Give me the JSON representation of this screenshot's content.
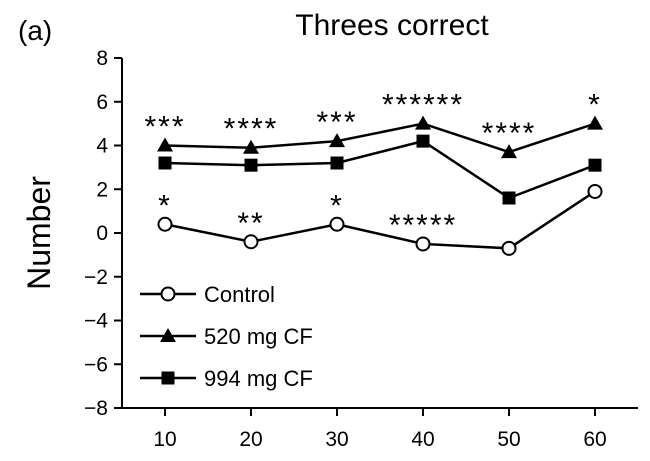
{
  "panel_label": "(a)",
  "chart_data": {
    "type": "line",
    "title": "Threes correct",
    "xlabel": "",
    "ylabel": "Number",
    "x": [
      10,
      20,
      30,
      40,
      50,
      60
    ],
    "xlim": [
      5,
      65
    ],
    "ylim": [
      -8,
      8
    ],
    "yticks": [
      8,
      6,
      4,
      2,
      0,
      -2,
      -4,
      -6,
      -8
    ],
    "ytick_labels": [
      "8",
      "6",
      "4",
      "2",
      "0",
      "−2",
      "−4",
      "−6",
      "−8"
    ],
    "xtick_labels": [
      "10",
      "20",
      "30",
      "40",
      "50",
      "60"
    ],
    "grid": false,
    "legend_position": "bottom-left",
    "series": [
      {
        "name": "Control",
        "marker": "open-circle",
        "color": "#000000",
        "values": [
          0.4,
          -0.4,
          0.4,
          -0.5,
          -0.7,
          1.9
        ]
      },
      {
        "name": "520 mg CF",
        "marker": "filled-triangle",
        "color": "#000000",
        "values": [
          4.0,
          3.9,
          4.2,
          5.0,
          3.7,
          5.0
        ]
      },
      {
        "name": "994 mg CF",
        "marker": "filled-square",
        "color": "#000000",
        "values": [
          3.2,
          3.1,
          3.2,
          4.2,
          1.6,
          3.1
        ]
      }
    ],
    "annotations": [
      {
        "x": 10,
        "y": 4.0,
        "text": "***"
      },
      {
        "x": 20,
        "y": 3.9,
        "text": "****"
      },
      {
        "x": 30,
        "y": 4.2,
        "text": "***"
      },
      {
        "x": 40,
        "y": 5.0,
        "text": "******"
      },
      {
        "x": 50,
        "y": 3.7,
        "text": "****"
      },
      {
        "x": 60,
        "y": 5.0,
        "text": "*"
      },
      {
        "x": 10,
        "y": 0.4,
        "text": "*"
      },
      {
        "x": 20,
        "y": -0.4,
        "text": "**"
      },
      {
        "x": 30,
        "y": 0.4,
        "text": "*"
      },
      {
        "x": 40,
        "y": -0.5,
        "text": "*****"
      }
    ]
  }
}
